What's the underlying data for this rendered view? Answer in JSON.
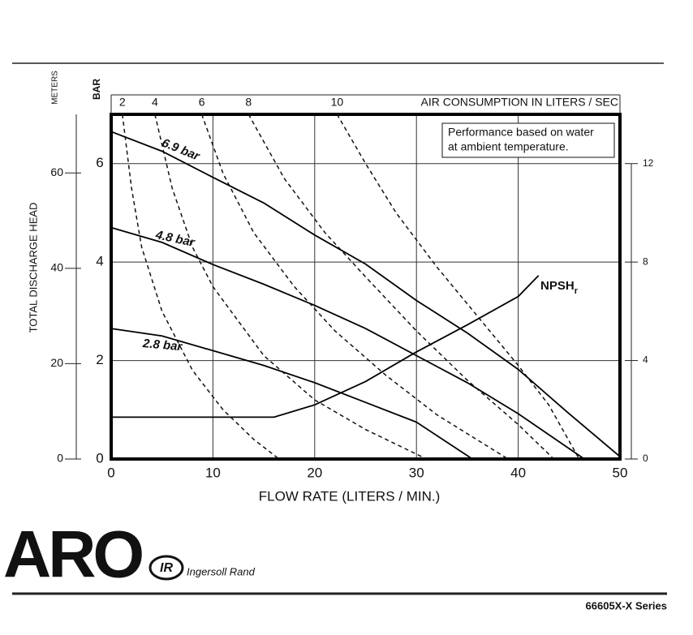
{
  "chart_data": {
    "type": "line",
    "xlabel": "FLOW RATE (LITERS / MIN.)",
    "ylabel": "TOTAL DISCHARGE HEAD",
    "y_meters_label": "METERS",
    "y_bar_label": "BAR",
    "x2label": "AIR CONSUMPTION IN LITERS / SEC",
    "note": [
      "Performance based on water",
      "at ambient temperature."
    ],
    "xlim": [
      0,
      50
    ],
    "xticks": [
      0,
      10,
      20,
      30,
      40,
      50
    ],
    "ylim": [
      0,
      7
    ],
    "yticks": [
      0,
      2,
      4,
      6
    ],
    "y_meters_lim": [
      0,
      72.3
    ],
    "y_meters_ticks": [
      0,
      20,
      40,
      60
    ],
    "y2lim": [
      0,
      14
    ],
    "y2ticks": [
      0,
      4,
      8,
      12
    ],
    "grid": true,
    "series": [
      {
        "name": "6.9 bar",
        "color": "#000000",
        "x": [
          0,
          5,
          10,
          15,
          20,
          25,
          30,
          35,
          40,
          45,
          50
        ],
        "values": [
          6.65,
          6.25,
          5.72,
          5.2,
          4.55,
          3.96,
          3.22,
          2.56,
          1.82,
          0.92,
          0.05
        ]
      },
      {
        "name": "4.8 bar",
        "color": "#000000",
        "x": [
          0,
          5,
          10,
          15,
          20,
          25,
          30,
          35,
          40,
          46.5
        ],
        "values": [
          4.7,
          4.4,
          3.95,
          3.55,
          3.12,
          2.65,
          2.1,
          1.55,
          0.92,
          0
        ]
      },
      {
        "name": "2.8 bar",
        "color": "#000000",
        "x": [
          0,
          5,
          10,
          15,
          20,
          25,
          30,
          35.5
        ],
        "values": [
          2.65,
          2.5,
          2.2,
          1.9,
          1.55,
          1.15,
          0.75,
          0
        ]
      },
      {
        "name": "NPSH",
        "subscript": "r",
        "color": "#000000",
        "axis": "y2",
        "x": [
          0,
          16,
          20,
          25,
          30,
          35,
          40,
          42
        ],
        "values": [
          1.7,
          1.7,
          2.2,
          3.15,
          4.35,
          5.45,
          6.6,
          7.45
        ]
      }
    ],
    "air_curves": [
      {
        "label": 2,
        "x": [
          1.1,
          2,
          3,
          5,
          8,
          11,
          14,
          16.5
        ],
        "values": [
          7,
          5.5,
          4.3,
          3.0,
          1.8,
          1.0,
          0.4,
          0
        ]
      },
      {
        "label": 4,
        "x": [
          4.3,
          6,
          8,
          10,
          15,
          20,
          25,
          31
        ],
        "values": [
          7,
          5.5,
          4.3,
          3.5,
          2.1,
          1.2,
          0.6,
          0
        ]
      },
      {
        "label": 6,
        "x": [
          8.9,
          11,
          14,
          18,
          22,
          27,
          32,
          39
        ],
        "values": [
          7,
          5.8,
          4.6,
          3.5,
          2.6,
          1.7,
          0.9,
          0
        ]
      },
      {
        "label": 8,
        "x": [
          13.5,
          17,
          21,
          25,
          30,
          35,
          40,
          43.5
        ],
        "values": [
          7,
          5.7,
          4.6,
          3.7,
          2.6,
          1.6,
          0.7,
          0
        ]
      },
      {
        "label": 10,
        "x": [
          22.2,
          25,
          28,
          32,
          36,
          40,
          43,
          46
        ],
        "values": [
          7,
          6,
          5,
          3.9,
          2.9,
          1.9,
          1.1,
          0
        ]
      }
    ]
  },
  "footer": {
    "brand": "ARO",
    "logo": "IR",
    "company": "Ingersoll Rand",
    "model": "66605X-X Series"
  }
}
